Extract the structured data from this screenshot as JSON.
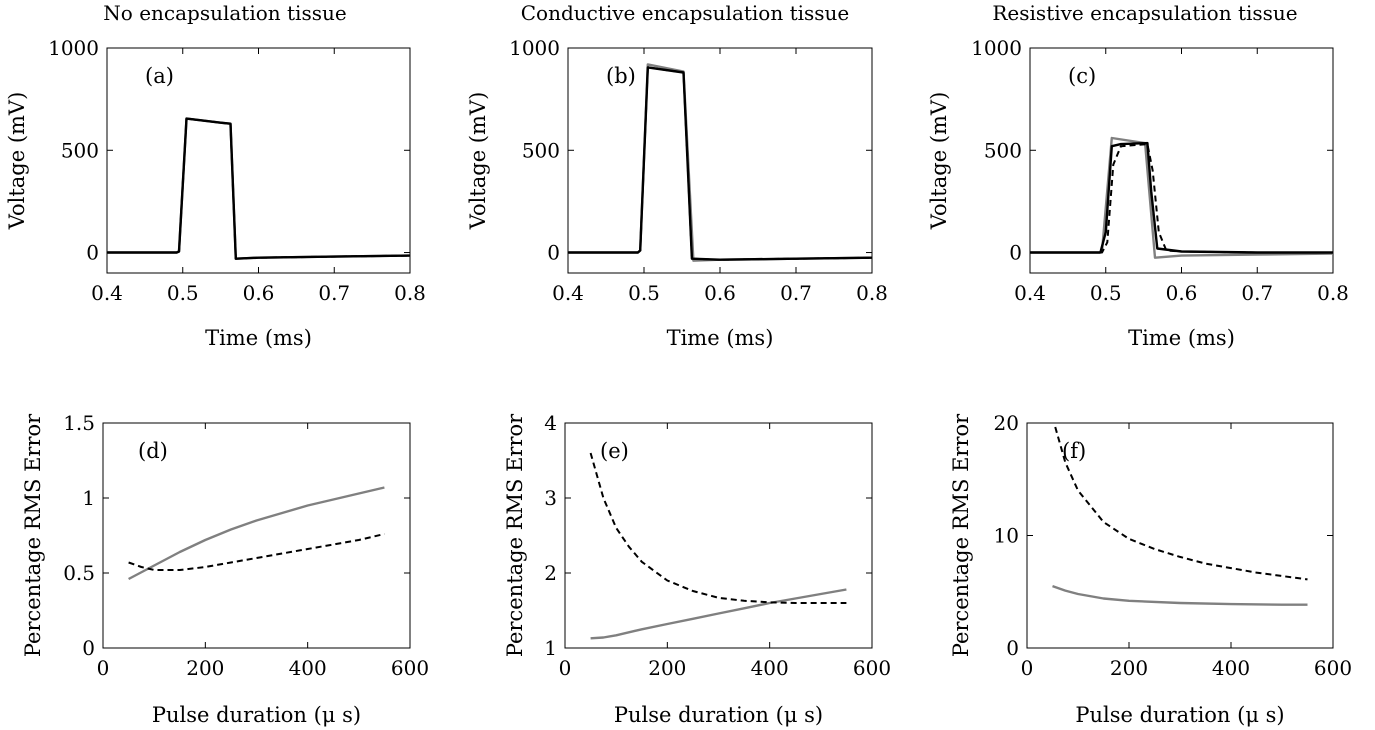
{
  "chart_data": [
    {
      "type": "line",
      "panel_label": "(a)",
      "title": "No encapsulation tissue",
      "xlabel": "Time (ms)",
      "ylabel": "Voltage (mV)",
      "xlim": [
        0.4,
        0.8
      ],
      "ylim": [
        -100,
        1000
      ],
      "xticks": [
        "0.4",
        "0.5",
        "0.6",
        "0.7",
        "0.8"
      ],
      "yticks": [
        "0",
        "500",
        "1000"
      ],
      "series": [
        {
          "color": "#808080",
          "style": "solid",
          "points": [
            [
              0.4,
              0
            ],
            [
              0.492,
              0
            ],
            [
              0.495,
              5
            ],
            [
              0.505,
              655
            ],
            [
              0.55,
              635
            ],
            [
              0.563,
              630
            ],
            [
              0.57,
              -30
            ],
            [
              0.6,
              -25
            ],
            [
              0.7,
              -20
            ],
            [
              0.8,
              -15
            ]
          ]
        },
        {
          "color": "#000000",
          "style": "solid",
          "points": [
            [
              0.4,
              0
            ],
            [
              0.492,
              0
            ],
            [
              0.495,
              5
            ],
            [
              0.505,
              655
            ],
            [
              0.55,
              635
            ],
            [
              0.563,
              630
            ],
            [
              0.57,
              -30
            ],
            [
              0.6,
              -25
            ],
            [
              0.7,
              -20
            ],
            [
              0.8,
              -15
            ]
          ]
        },
        {
          "color": "#000000",
          "style": "dashed",
          "points": [
            [
              0.4,
              0
            ],
            [
              0.492,
              0
            ],
            [
              0.495,
              5
            ],
            [
              0.505,
              655
            ],
            [
              0.55,
              635
            ],
            [
              0.563,
              630
            ],
            [
              0.57,
              -30
            ],
            [
              0.6,
              -25
            ],
            [
              0.7,
              -20
            ],
            [
              0.8,
              -15
            ]
          ]
        }
      ]
    },
    {
      "type": "line",
      "panel_label": "(b)",
      "title": "Conductive encapsulation tissue",
      "xlabel": "Time (ms)",
      "ylabel": "Voltage (mV)",
      "xlim": [
        0.4,
        0.8
      ],
      "ylim": [
        -100,
        1000
      ],
      "xticks": [
        "0.4",
        "0.5",
        "0.6",
        "0.7",
        "0.8"
      ],
      "yticks": [
        "0",
        "500",
        "1000"
      ],
      "series": [
        {
          "color": "#808080",
          "style": "solid",
          "points": [
            [
              0.4,
              0
            ],
            [
              0.492,
              0
            ],
            [
              0.495,
              10
            ],
            [
              0.505,
              920
            ],
            [
              0.552,
              885
            ],
            [
              0.565,
              -40
            ],
            [
              0.6,
              -35
            ],
            [
              0.7,
              -30
            ],
            [
              0.8,
              -25
            ]
          ]
        },
        {
          "color": "#000000",
          "style": "solid",
          "points": [
            [
              0.4,
              0
            ],
            [
              0.492,
              0
            ],
            [
              0.495,
              10
            ],
            [
              0.505,
              905
            ],
            [
              0.552,
              880
            ],
            [
              0.563,
              -30
            ],
            [
              0.6,
              -35
            ],
            [
              0.7,
              -30
            ],
            [
              0.8,
              -25
            ]
          ]
        },
        {
          "color": "#000000",
          "style": "dashed",
          "points": [
            [
              0.4,
              0
            ],
            [
              0.492,
              0
            ],
            [
              0.495,
              10
            ],
            [
              0.505,
              905
            ],
            [
              0.552,
              880
            ],
            [
              0.563,
              -30
            ],
            [
              0.6,
              -35
            ],
            [
              0.7,
              -30
            ],
            [
              0.8,
              -25
            ]
          ]
        }
      ]
    },
    {
      "type": "line",
      "panel_label": "(c)",
      "title": "Resistive encapsulation tissue",
      "xlabel": "Time (ms)",
      "ylabel": "Voltage (mV)",
      "xlim": [
        0.4,
        0.8
      ],
      "ylim": [
        -100,
        1000
      ],
      "xticks": [
        "0.4",
        "0.5",
        "0.6",
        "0.7",
        "0.8"
      ],
      "yticks": [
        "0",
        "500",
        "1000"
      ],
      "series": [
        {
          "color": "#808080",
          "style": "solid",
          "points": [
            [
              0.4,
              0
            ],
            [
              0.492,
              0
            ],
            [
              0.495,
              5
            ],
            [
              0.508,
              560
            ],
            [
              0.552,
              535
            ],
            [
              0.565,
              -25
            ],
            [
              0.6,
              -15
            ],
            [
              0.7,
              -10
            ],
            [
              0.8,
              -5
            ]
          ]
        },
        {
          "color": "#000000",
          "style": "solid",
          "points": [
            [
              0.4,
              0
            ],
            [
              0.493,
              0
            ],
            [
              0.5,
              100
            ],
            [
              0.508,
              520
            ],
            [
              0.52,
              530
            ],
            [
              0.555,
              535
            ],
            [
              0.56,
              300
            ],
            [
              0.568,
              20
            ],
            [
              0.6,
              5
            ],
            [
              0.7,
              0
            ],
            [
              0.8,
              0
            ]
          ]
        },
        {
          "color": "#000000",
          "style": "dashed",
          "points": [
            [
              0.4,
              0
            ],
            [
              0.495,
              0
            ],
            [
              0.502,
              50
            ],
            [
              0.51,
              430
            ],
            [
              0.52,
              520
            ],
            [
              0.555,
              530
            ],
            [
              0.562,
              400
            ],
            [
              0.57,
              100
            ],
            [
              0.58,
              10
            ],
            [
              0.6,
              5
            ],
            [
              0.7,
              0
            ],
            [
              0.8,
              0
            ]
          ]
        }
      ]
    },
    {
      "type": "line",
      "panel_label": "(d)",
      "xlabel": "Pulse duration (μ s)",
      "ylabel": "Percentage RMS Error",
      "xlim": [
        0,
        600
      ],
      "ylim": [
        0,
        1.5
      ],
      "xticks": [
        "0",
        "200",
        "400",
        "600"
      ],
      "yticks": [
        "0",
        "0.5",
        "1",
        "1.5"
      ],
      "series": [
        {
          "color": "#808080",
          "style": "solid",
          "points": [
            [
              50,
              0.46
            ],
            [
              100,
              0.55
            ],
            [
              150,
              0.64
            ],
            [
              200,
              0.72
            ],
            [
              250,
              0.79
            ],
            [
              300,
              0.85
            ],
            [
              350,
              0.9
            ],
            [
              400,
              0.95
            ],
            [
              450,
              0.99
            ],
            [
              500,
              1.03
            ],
            [
              550,
              1.07
            ]
          ]
        },
        {
          "color": "#000000",
          "style": "dashed",
          "points": [
            [
              50,
              0.57
            ],
            [
              75,
              0.54
            ],
            [
              100,
              0.52
            ],
            [
              150,
              0.52
            ],
            [
              200,
              0.54
            ],
            [
              250,
              0.57
            ],
            [
              300,
              0.6
            ],
            [
              350,
              0.63
            ],
            [
              400,
              0.66
            ],
            [
              450,
              0.69
            ],
            [
              500,
              0.72
            ],
            [
              550,
              0.76
            ]
          ]
        }
      ]
    },
    {
      "type": "line",
      "panel_label": "(e)",
      "xlabel": "Pulse duration (μ s)",
      "ylabel": "Percentage RMS Error",
      "xlim": [
        0,
        600
      ],
      "ylim": [
        1,
        4
      ],
      "xticks": [
        "0",
        "200",
        "400",
        "600"
      ],
      "yticks": [
        "1",
        "2",
        "3",
        "4"
      ],
      "series": [
        {
          "color": "#808080",
          "style": "solid",
          "points": [
            [
              50,
              1.13
            ],
            [
              75,
              1.14
            ],
            [
              100,
              1.17
            ],
            [
              150,
              1.25
            ],
            [
              200,
              1.32
            ],
            [
              250,
              1.39
            ],
            [
              300,
              1.46
            ],
            [
              350,
              1.53
            ],
            [
              400,
              1.6
            ],
            [
              450,
              1.66
            ],
            [
              500,
              1.72
            ],
            [
              550,
              1.78
            ]
          ]
        },
        {
          "color": "#000000",
          "style": "dashed",
          "points": [
            [
              50,
              3.6
            ],
            [
              75,
              3.0
            ],
            [
              100,
              2.6
            ],
            [
              125,
              2.35
            ],
            [
              150,
              2.15
            ],
            [
              200,
              1.9
            ],
            [
              250,
              1.76
            ],
            [
              300,
              1.67
            ],
            [
              350,
              1.63
            ],
            [
              400,
              1.61
            ],
            [
              450,
              1.6
            ],
            [
              500,
              1.6
            ],
            [
              550,
              1.6
            ]
          ]
        }
      ]
    },
    {
      "type": "line",
      "panel_label": "(f)",
      "xlabel": "Pulse duration (μ s)",
      "ylabel": "Percentage RMS Error",
      "xlim": [
        0,
        600
      ],
      "ylim": [
        0,
        20
      ],
      "xticks": [
        "0",
        "200",
        "400",
        "600"
      ],
      "yticks": [
        "0",
        "10",
        "20"
      ],
      "series": [
        {
          "color": "#808080",
          "style": "solid",
          "points": [
            [
              50,
              5.5
            ],
            [
              75,
              5.1
            ],
            [
              100,
              4.8
            ],
            [
              150,
              4.4
            ],
            [
              200,
              4.2
            ],
            [
              300,
              4.0
            ],
            [
              400,
              3.9
            ],
            [
              500,
              3.85
            ],
            [
              550,
              3.85
            ]
          ]
        },
        {
          "color": "#000000",
          "style": "dashed",
          "points": [
            [
              50,
              20.5
            ],
            [
              75,
              16.5
            ],
            [
              100,
              14.0
            ],
            [
              150,
              11.2
            ],
            [
              200,
              9.7
            ],
            [
              250,
              8.8
            ],
            [
              300,
              8.1
            ],
            [
              350,
              7.5
            ],
            [
              400,
              7.1
            ],
            [
              450,
              6.7
            ],
            [
              500,
              6.4
            ],
            [
              550,
              6.1
            ]
          ]
        }
      ]
    }
  ]
}
